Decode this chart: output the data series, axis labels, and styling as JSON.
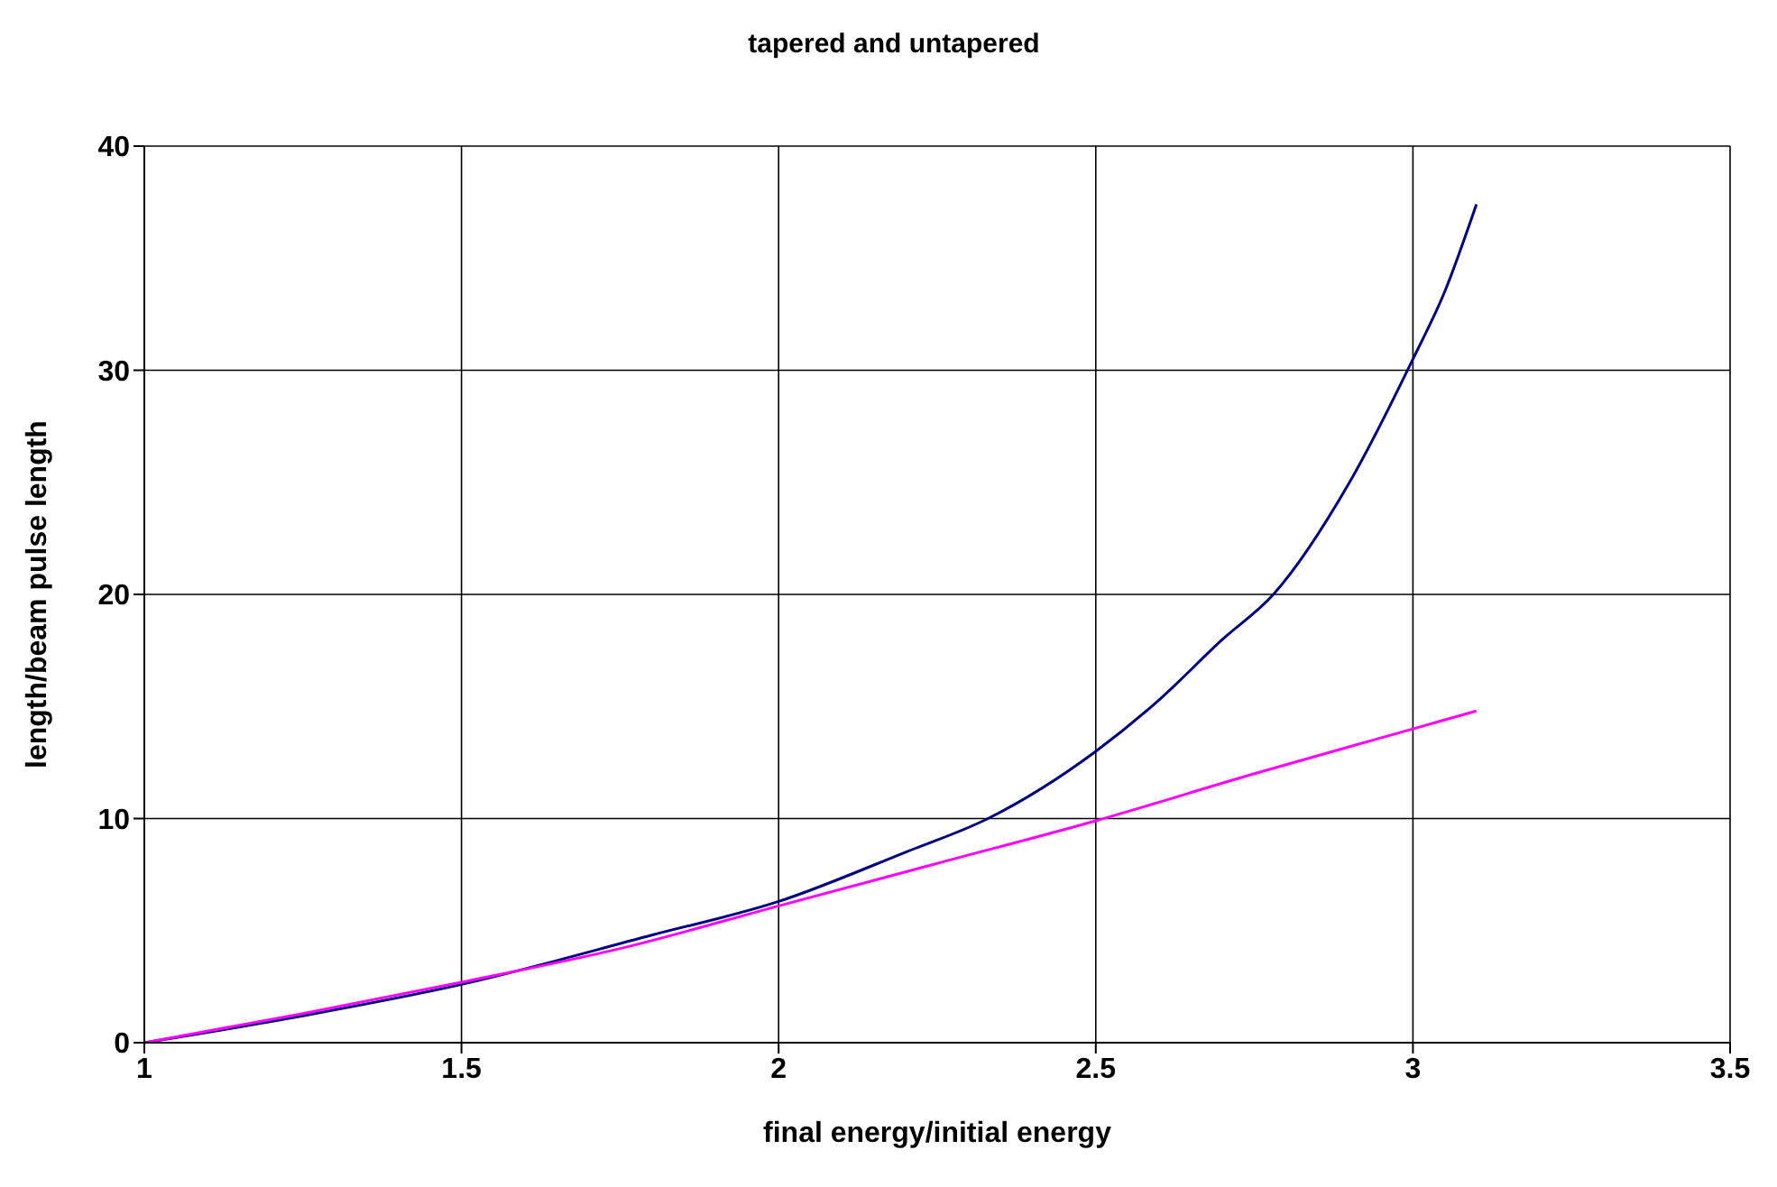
{
  "chart_data": {
    "type": "line",
    "title": "tapered and untapered",
    "xlabel": "final energy/initial energy",
    "ylabel": "length/beam pulse length",
    "xlim": [
      1,
      3.5
    ],
    "xticks": [
      1,
      1.5,
      2,
      2.5,
      3,
      3.5
    ],
    "ylim": [
      0,
      40
    ],
    "yticks": [
      0,
      10,
      20,
      30,
      40
    ],
    "grid": true,
    "marker": "none",
    "line_style": "solid",
    "series": [
      {
        "color": "#000080",
        "x": [
          1,
          1.25,
          1.5,
          1.8,
          2,
          2.2,
          2.33,
          2.5,
          2.6,
          2.7,
          2.78,
          2.9,
          3,
          3.05,
          3.1
        ],
        "values": [
          0,
          1.2,
          2.6,
          4.8,
          6.3,
          8.5,
          10,
          13,
          15.3,
          18,
          20,
          25,
          30.5,
          33.5,
          37.4
        ]
      },
      {
        "color": "#ff00ff",
        "x": [
          1,
          1.25,
          1.5,
          1.75,
          2,
          2.25,
          2.5,
          2.75,
          3,
          3.1
        ],
        "values": [
          0,
          1.3,
          2.7,
          4.2,
          6.1,
          8,
          9.9,
          12,
          14,
          14.8
        ]
      }
    ]
  }
}
